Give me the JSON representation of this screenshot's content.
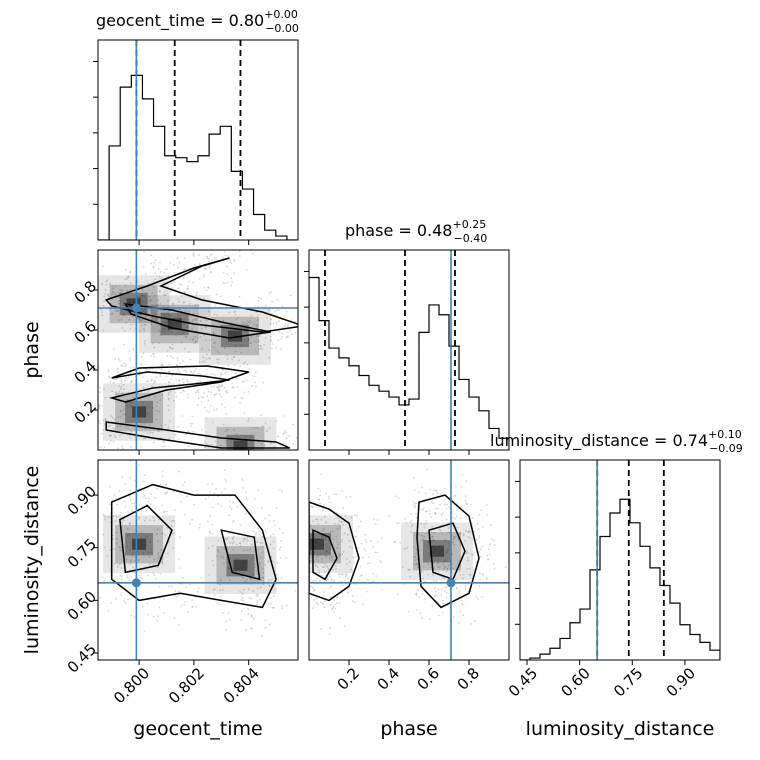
{
  "chart_data": {
    "type": "corner",
    "parameters": [
      {
        "name": "geocent_time",
        "title": {
          "label": "geocent_time",
          "median": "0.80",
          "plus": "+0.00",
          "minus": "−0.00"
        },
        "range": [
          0.7985,
          0.8058
        ],
        "ticks": [
          0.8,
          0.802,
          0.804
        ],
        "tick_labels": [
          "0.800",
          "0.802",
          "0.804"
        ],
        "truth": 0.7999,
        "quantiles": [
          0.7999,
          0.8013,
          0.8037
        ],
        "hist_values": [
          0.0,
          0.48,
          0.78,
          0.84,
          0.72,
          0.58,
          0.43,
          0.42,
          0.4,
          0.43,
          0.54,
          0.58,
          0.35,
          0.26,
          0.13,
          0.05,
          0.02,
          0.0
        ]
      },
      {
        "name": "phase",
        "title": {
          "label": "phase",
          "median": "0.48",
          "plus": "+0.25",
          "minus": "−0.40"
        },
        "range": [
          0.0,
          1.0
        ],
        "ticks": [
          0.2,
          0.4,
          0.6,
          0.8
        ],
        "tick_labels": [
          "0.2",
          "0.4",
          "0.6",
          "0.8"
        ],
        "truth": 0.71,
        "quantiles": [
          0.08,
          0.48,
          0.73
        ],
        "hist_values": [
          0.88,
          0.66,
          0.52,
          0.47,
          0.43,
          0.38,
          0.33,
          0.3,
          0.27,
          0.23,
          0.26,
          0.6,
          0.74,
          0.69,
          0.53,
          0.36,
          0.27,
          0.2,
          0.11,
          0.06
        ]
      },
      {
        "name": "luminosity_distance",
        "title": {
          "label": "luminosity_distance",
          "median": "0.74",
          "plus": "+0.10",
          "minus": "−0.09"
        },
        "range": [
          0.43,
          1.0
        ],
        "ticks": [
          0.45,
          0.6,
          0.75,
          0.9
        ],
        "tick_labels": [
          "0.45",
          "0.60",
          "0.75",
          "0.90"
        ],
        "truth": 0.65,
        "quantiles": [
          0.65,
          0.74,
          0.84
        ],
        "hist_values": [
          0.0,
          0.01,
          0.03,
          0.06,
          0.11,
          0.19,
          0.26,
          0.46,
          0.63,
          0.75,
          0.82,
          0.7,
          0.58,
          0.47,
          0.38,
          0.29,
          0.18,
          0.13,
          0.09,
          0.05
        ]
      }
    ],
    "axis_labels": {
      "x": [
        "geocent_time",
        "phase",
        "luminosity_distance"
      ],
      "y": [
        "phase",
        "luminosity_distance"
      ]
    },
    "grid": true,
    "density_panels": [
      {
        "x": "geocent_time",
        "y": "phase",
        "contours": [
          [
            [
              0.799,
              0.76
            ],
            [
              0.8003,
              0.82
            ],
            [
              0.802,
              0.91
            ],
            [
              0.8033,
              0.96
            ],
            [
              0.8023,
              0.92
            ],
            [
              0.8008,
              0.82
            ],
            [
              0.8023,
              0.75
            ],
            [
              0.8045,
              0.69
            ],
            [
              0.806,
              0.62
            ],
            [
              0.8045,
              0.59
            ],
            [
              0.802,
              0.63
            ],
            [
              0.8005,
              0.67
            ],
            [
              0.799,
              0.72
            ],
            [
              0.7988,
              0.75
            ]
          ],
          [
            [
              0.7995,
              0.73
            ],
            [
              0.8012,
              0.7
            ],
            [
              0.803,
              0.64
            ],
            [
              0.8048,
              0.59
            ],
            [
              0.8033,
              0.56
            ],
            [
              0.8012,
              0.61
            ],
            [
              0.7997,
              0.68
            ]
          ],
          [
            [
              0.799,
              0.26
            ],
            [
              0.8005,
              0.31
            ],
            [
              0.802,
              0.33
            ],
            [
              0.8033,
              0.35
            ],
            [
              0.8023,
              0.37
            ],
            [
              0.8003,
              0.39
            ],
            [
              0.799,
              0.36
            ],
            [
              0.8,
              0.41
            ],
            [
              0.8025,
              0.42
            ],
            [
              0.804,
              0.39
            ],
            [
              0.803,
              0.34
            ],
            [
              0.801,
              0.3
            ],
            [
              0.7995,
              0.24
            ]
          ],
          [
            [
              0.7988,
              0.14
            ],
            [
              0.801,
              0.1
            ],
            [
              0.803,
              0.06
            ],
            [
              0.805,
              0.04
            ],
            [
              0.8055,
              0.01
            ],
            [
              0.803,
              0.01
            ],
            [
              0.8005,
              0.06
            ],
            [
              0.7988,
              0.1
            ]
          ]
        ],
        "density_peaks": [
          [
            0.7998,
            0.73
          ],
          [
            0.8013,
            0.63
          ],
          [
            0.8035,
            0.57
          ],
          [
            0.8037,
            0.02
          ],
          [
            0.8,
            0.19
          ]
        ]
      },
      {
        "x": "geocent_time",
        "y": "luminosity_distance",
        "contours": [
          [
            [
              0.799,
              0.88
            ],
            [
              0.8005,
              0.93
            ],
            [
              0.802,
              0.9
            ],
            [
              0.8035,
              0.9
            ],
            [
              0.8045,
              0.8
            ],
            [
              0.805,
              0.66
            ],
            [
              0.8045,
              0.58
            ],
            [
              0.803,
              0.6
            ],
            [
              0.8015,
              0.62
            ],
            [
              0.8,
              0.6
            ],
            [
              0.799,
              0.66
            ]
          ],
          [
            [
              0.7993,
              0.83
            ],
            [
              0.8003,
              0.87
            ],
            [
              0.8012,
              0.8
            ],
            [
              0.8007,
              0.7
            ],
            [
              0.7995,
              0.68
            ]
          ],
          [
            [
              0.803,
              0.8
            ],
            [
              0.8042,
              0.78
            ],
            [
              0.8044,
              0.66
            ],
            [
              0.8034,
              0.68
            ]
          ]
        ],
        "density_peaks": [
          [
            0.8,
            0.76
          ],
          [
            0.8037,
            0.7
          ]
        ]
      },
      {
        "x": "phase",
        "y": "luminosity_distance",
        "contours": [
          [
            [
              0.0,
              0.88
            ],
            [
              0.1,
              0.86
            ],
            [
              0.2,
              0.82
            ],
            [
              0.25,
              0.72
            ],
            [
              0.2,
              0.64
            ],
            [
              0.1,
              0.6
            ],
            [
              0.0,
              0.62
            ]
          ],
          [
            [
              0.55,
              0.88
            ],
            [
              0.68,
              0.9
            ],
            [
              0.8,
              0.84
            ],
            [
              0.85,
              0.72
            ],
            [
              0.8,
              0.62
            ],
            [
              0.66,
              0.58
            ],
            [
              0.56,
              0.64
            ],
            [
              0.54,
              0.78
            ]
          ],
          [
            [
              0.02,
              0.8
            ],
            [
              0.1,
              0.78
            ],
            [
              0.14,
              0.72
            ],
            [
              0.08,
              0.66
            ],
            [
              0.02,
              0.68
            ]
          ],
          [
            [
              0.6,
              0.8
            ],
            [
              0.72,
              0.82
            ],
            [
              0.78,
              0.74
            ],
            [
              0.72,
              0.66
            ],
            [
              0.62,
              0.68
            ]
          ]
        ],
        "density_peaks": [
          [
            0.04,
            0.76
          ],
          [
            0.64,
            0.74
          ]
        ]
      }
    ]
  }
}
